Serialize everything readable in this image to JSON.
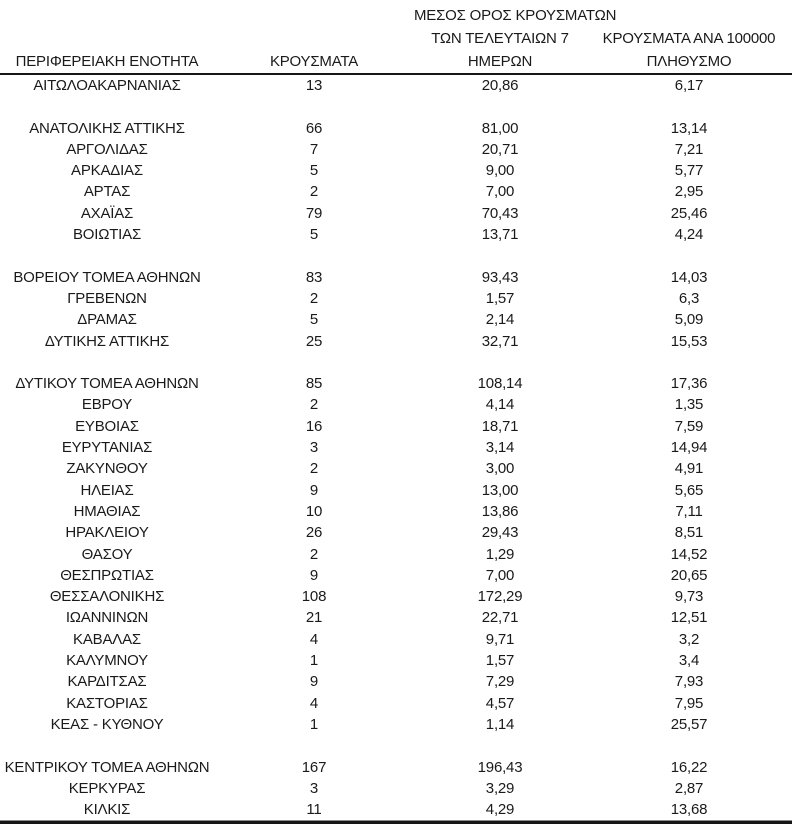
{
  "table": {
    "headers": {
      "region": {
        "lines": [
          "ΠΕΡΙΦΕΡΕΙΑΚΗ ΕΝΟΤΗΤΑ"
        ]
      },
      "cases": {
        "lines": [
          "ΚΡΟΥΣΜΑΤΑ"
        ]
      },
      "avg7": {
        "lines": [
          "ΜΕΣΟΣ ΟΡΟΣ ΚΡΟΥΣΜΑΤΩΝ",
          "ΤΩΝ ΤΕΛΕΥΤΑΙΩΝ 7",
          "ΗΜΕΡΩΝ"
        ]
      },
      "per100k": {
        "lines": [
          "ΚΡΟΥΣΜΑΤΑ ΑΝΑ 100000",
          "ΠΛΗΘΥΣΜΟ"
        ]
      }
    },
    "rows": [
      {
        "region": "ΑΙΤΩΛΟΑΚΑΡΝΑΝΙΑΣ",
        "cases": "13",
        "avg7": "20,86",
        "per100k": "6,17"
      },
      {
        "region": "ΑΝΑΤΟΛΙΚΗΣ ΑΤΤΙΚΗΣ",
        "cases": "66",
        "avg7": "81,00",
        "per100k": "13,14"
      },
      {
        "region": "ΑΡΓΟΛΙΔΑΣ",
        "cases": "7",
        "avg7": "20,71",
        "per100k": "7,21"
      },
      {
        "region": "ΑΡΚΑΔΙΑΣ",
        "cases": "5",
        "avg7": "9,00",
        "per100k": "5,77"
      },
      {
        "region": "ΑΡΤΑΣ",
        "cases": "2",
        "avg7": "7,00",
        "per100k": "2,95"
      },
      {
        "region": "ΑΧΑΪΑΣ",
        "cases": "79",
        "avg7": "70,43",
        "per100k": "25,46"
      },
      {
        "region": "ΒΟΙΩΤΙΑΣ",
        "cases": "5",
        "avg7": "13,71",
        "per100k": "4,24"
      },
      {
        "region": "ΒΟΡΕΙΟΥ ΤΟΜΕΑ ΑΘΗΝΩΝ",
        "cases": "83",
        "avg7": "93,43",
        "per100k": "14,03"
      },
      {
        "region": "ΓΡΕΒΕΝΩΝ",
        "cases": "2",
        "avg7": "1,57",
        "per100k": "6,3"
      },
      {
        "region": "ΔΡΑΜΑΣ",
        "cases": "5",
        "avg7": "2,14",
        "per100k": "5,09"
      },
      {
        "region": "ΔΥΤΙΚΗΣ ΑΤΤΙΚΗΣ",
        "cases": "25",
        "avg7": "32,71",
        "per100k": "15,53"
      },
      {
        "region": "ΔΥΤΙΚΟΥ ΤΟΜΕΑ ΑΘΗΝΩΝ",
        "cases": "85",
        "avg7": "108,14",
        "per100k": "17,36"
      },
      {
        "region": "ΕΒΡΟΥ",
        "cases": "2",
        "avg7": "4,14",
        "per100k": "1,35"
      },
      {
        "region": "ΕΥΒΟΙΑΣ",
        "cases": "16",
        "avg7": "18,71",
        "per100k": "7,59"
      },
      {
        "region": "ΕΥΡΥΤΑΝΙΑΣ",
        "cases": "3",
        "avg7": "3,14",
        "per100k": "14,94"
      },
      {
        "region": "ΖΑΚΥΝΘΟΥ",
        "cases": "2",
        "avg7": "3,00",
        "per100k": "4,91"
      },
      {
        "region": "ΗΛΕΙΑΣ",
        "cases": "9",
        "avg7": "13,00",
        "per100k": "5,65"
      },
      {
        "region": "ΗΜΑΘΙΑΣ",
        "cases": "10",
        "avg7": "13,86",
        "per100k": "7,11"
      },
      {
        "region": "ΗΡΑΚΛΕΙΟΥ",
        "cases": "26",
        "avg7": "29,43",
        "per100k": "8,51"
      },
      {
        "region": "ΘΑΣΟΥ",
        "cases": "2",
        "avg7": "1,29",
        "per100k": "14,52"
      },
      {
        "region": "ΘΕΣΠΡΩΤΙΑΣ",
        "cases": "9",
        "avg7": "7,00",
        "per100k": "20,65"
      },
      {
        "region": "ΘΕΣΣΑΛΟΝΙΚΗΣ",
        "cases": "108",
        "avg7": "172,29",
        "per100k": "9,73"
      },
      {
        "region": "ΙΩΑΝΝΙΝΩΝ",
        "cases": "21",
        "avg7": "22,71",
        "per100k": "12,51"
      },
      {
        "region": "ΚΑΒΑΛΑΣ",
        "cases": "4",
        "avg7": "9,71",
        "per100k": "3,2"
      },
      {
        "region": "ΚΑΛΥΜΝΟΥ",
        "cases": "1",
        "avg7": "1,57",
        "per100k": "3,4"
      },
      {
        "region": "ΚΑΡΔΙΤΣΑΣ",
        "cases": "9",
        "avg7": "7,29",
        "per100k": "7,93"
      },
      {
        "region": "ΚΑΣΤΟΡΙΑΣ",
        "cases": "4",
        "avg7": "4,57",
        "per100k": "7,95"
      },
      {
        "region": "ΚΕΑΣ - ΚΥΘΝΟΥ",
        "cases": "1",
        "avg7": "1,14",
        "per100k": "25,57"
      },
      {
        "region": "ΚΕΝΤΡΙΚΟΥ ΤΟΜΕΑ ΑΘΗΝΩΝ",
        "cases": "167",
        "avg7": "196,43",
        "per100k": "16,22"
      },
      {
        "region": "ΚΕΡΚΥΡΑΣ",
        "cases": "3",
        "avg7": "3,29",
        "per100k": "2,87"
      },
      {
        "region": "ΚΙΛΚΙΣ",
        "cases": "11",
        "avg7": "4,29",
        "per100k": "13,68"
      }
    ],
    "group_breaks_after": [
      0,
      6,
      10,
      27
    ],
    "colors": {
      "text": "#1a1a1a",
      "rule": "#161616",
      "thin_rule": "#8c8c8c",
      "background": "#ffffff"
    }
  }
}
